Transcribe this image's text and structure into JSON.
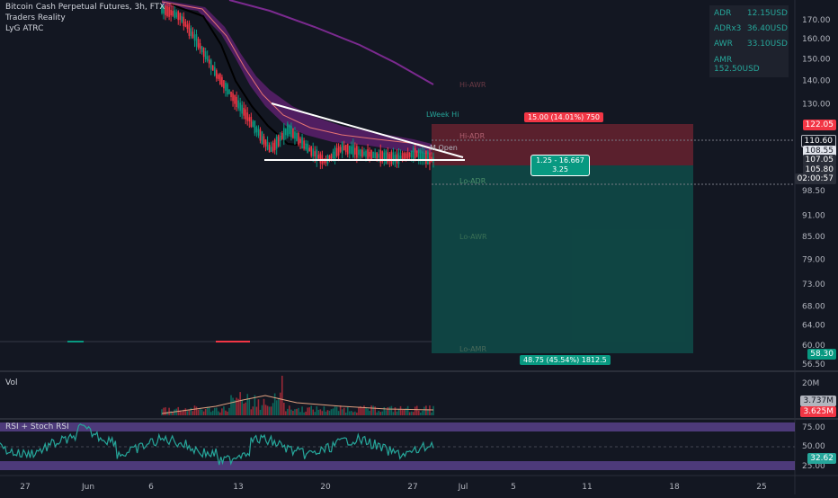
{
  "header": {
    "title": "Bitcoin Cash Perpetual Futures, 3h, FTX",
    "indicator1": "Traders Reality",
    "indicator2": "LyG ATRC"
  },
  "info_box": [
    {
      "k": "ADR",
      "v": "12.15USD"
    },
    {
      "k": "ADRx3",
      "v": "36.40USD"
    },
    {
      "k": "AWR",
      "v": "33.10USD"
    },
    {
      "k": "AMR",
      "v": "152.50USD"
    }
  ],
  "annotations": {
    "risk": "15.00 (14.01%) 750",
    "ratio_line1": "1.25 - 16.667",
    "ratio_line2": "3.25",
    "reward": "48.75 (45.54%) 1812.5",
    "hi_awr": "Hi-AWR",
    "hi_adr": "Hi-ADR",
    "lo_adr": "Lo-ADR",
    "lo_awr": "Lo-AWR",
    "lo_amr": "Lo-AMR",
    "week_hi": "LWeek Hi",
    "m_open": "M Open"
  },
  "price_axis": {
    "ticks": [
      "170.00",
      "160.00",
      "150.00",
      "140.00",
      "130.00",
      "98.50",
      "91.00",
      "85.00",
      "79.00",
      "73.00",
      "68.00",
      "64.00",
      "60.00",
      "56.50"
    ],
    "badges": [
      {
        "label": "122.05",
        "color": "#f23645"
      },
      {
        "label": "110.60",
        "color": "#131722",
        "border": "#b2b5be"
      },
      {
        "label": "108.55",
        "color": "#e0e3eb",
        "text": "#131722"
      },
      {
        "label": "107.05",
        "color": "#2a2e39"
      },
      {
        "label": "105.80",
        "color": "#2a2e39"
      },
      {
        "label": "02:00:57",
        "color": "#2a2e39"
      },
      {
        "label": "58.30",
        "color": "#089981"
      }
    ]
  },
  "vol_panel": {
    "label": "Vol",
    "ticks": [
      "20M"
    ],
    "badges": [
      {
        "label": "3.737M",
        "color": "#b2b5be",
        "text": "#131722"
      },
      {
        "label": "3.625M",
        "color": "#f23645"
      }
    ]
  },
  "rsi_panel": {
    "label": "RSI + Stoch RSI",
    "ticks": [
      "75.00",
      "50.00",
      "25.00"
    ],
    "badge": {
      "label": "32.62",
      "color": "#26a69a"
    }
  },
  "time_axis": [
    "27",
    "Jun",
    "6",
    "13",
    "20",
    "27",
    "Jul",
    "5",
    "11",
    "18",
    "25"
  ],
  "chart_data": {
    "type": "candlestick",
    "title": "Bitcoin Cash Perpetual Futures, 3h, FTX",
    "y_scale": "log",
    "ylim": [
      56.5,
      175
    ],
    "x_ticks": [
      "27",
      "Jun",
      "6",
      "13",
      "20",
      "27",
      "Jul",
      "5",
      "11",
      "18",
      "25"
    ],
    "price_path": [
      {
        "x": "Jun 6",
        "y": 176
      },
      {
        "x": "Jun 8",
        "y": 172
      },
      {
        "x": "Jun 10",
        "y": 158
      },
      {
        "x": "Jun 11",
        "y": 143
      },
      {
        "x": "Jun 12",
        "y": 132
      },
      {
        "x": "Jun 13",
        "y": 122
      },
      {
        "x": "Jun 14",
        "y": 112
      },
      {
        "x": "Jun 15",
        "y": 120
      },
      {
        "x": "Jun 16",
        "y": 113
      },
      {
        "x": "Jun 17",
        "y": 108
      },
      {
        "x": "Jun 18",
        "y": 113
      },
      {
        "x": "Jun 20",
        "y": 111
      },
      {
        "x": "Jun 22",
        "y": 110
      },
      {
        "x": "Jun 24",
        "y": 109
      },
      {
        "x": "Jun 26",
        "y": 111
      },
      {
        "x": "Jun 28",
        "y": 108.55
      }
    ],
    "levels": {
      "stop": 122.05,
      "entry": 107.05,
      "target": 58.3,
      "hi_adr": 110.6,
      "lo_adr": 98.5
    },
    "trendlines": [
      {
        "name": "descending resistance",
        "from": {
          "x": "Jun 15",
          "y": 128
        },
        "to": {
          "x": "Jun 28",
          "y": 107
        }
      },
      {
        "name": "horizontal support",
        "from": {
          "x": "Jun 13",
          "y": 106
        },
        "to": {
          "x": "Jun 28",
          "y": 106
        }
      }
    ],
    "panels": {
      "volume_latest": "3.625M",
      "rsi_latest": 32.62,
      "rsi_bands": [
        75,
        50,
        25
      ]
    }
  }
}
